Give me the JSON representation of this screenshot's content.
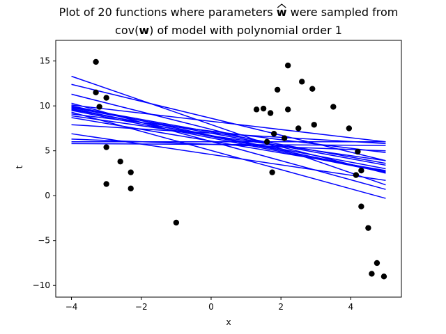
{
  "chart_data": {
    "type": "scatter",
    "title_line1": "Plot of 20 functions where parameters ŵ were sampled from",
    "title_line1_prefix": "Plot of 20 functions where parameters ",
    "title_line1_symbol": "w",
    "title_line1_suffix": " were sampled from",
    "title_line2_prefix": "cov(",
    "title_line2_symbol": "w",
    "title_line2_suffix": ") of model with polynomial order 1",
    "xlabel": "x",
    "ylabel": "t",
    "xlim": [
      -4.45,
      5.45
    ],
    "ylim": [
      -11.3,
      17.3
    ],
    "xticks": [
      -4,
      -2,
      0,
      2,
      4
    ],
    "yticks": [
      -10,
      -5,
      0,
      5,
      10,
      15
    ],
    "points_color": "#000000",
    "lines_color": "#0000ff",
    "points": [
      [
        -3.3,
        14.9
      ],
      [
        -3.3,
        11.5
      ],
      [
        -3.2,
        9.9
      ],
      [
        -3.0,
        10.9
      ],
      [
        -3.0,
        5.4
      ],
      [
        -3.0,
        1.3
      ],
      [
        -2.6,
        3.8
      ],
      [
        -2.3,
        2.6
      ],
      [
        -2.3,
        0.8
      ],
      [
        -1.0,
        -3.0
      ],
      [
        1.3,
        9.6
      ],
      [
        1.5,
        9.7
      ],
      [
        1.6,
        6.0
      ],
      [
        1.7,
        9.2
      ],
      [
        1.75,
        2.6
      ],
      [
        1.8,
        6.9
      ],
      [
        1.9,
        11.8
      ],
      [
        2.1,
        6.4
      ],
      [
        2.2,
        14.5
      ],
      [
        2.2,
        9.6
      ],
      [
        2.5,
        7.5
      ],
      [
        2.6,
        12.7
      ],
      [
        2.9,
        11.9
      ],
      [
        2.95,
        7.9
      ],
      [
        3.5,
        9.9
      ],
      [
        3.95,
        7.5
      ],
      [
        4.15,
        2.3
      ],
      [
        4.2,
        4.9
      ],
      [
        4.3,
        2.8
      ],
      [
        4.3,
        -1.2
      ],
      [
        4.5,
        -3.6
      ],
      [
        4.6,
        -8.7
      ],
      [
        4.75,
        -7.5
      ],
      [
        4.95,
        -9.0
      ]
    ],
    "line_x_range": [
      -4,
      5
    ],
    "lines": [
      [
        13.3,
        1.2
      ],
      [
        12.4,
        3.9
      ],
      [
        11.3,
        2.5
      ],
      [
        10.3,
        0.7
      ],
      [
        10.1,
        6.0
      ],
      [
        10.0,
        2.6
      ],
      [
        9.9,
        3.6
      ],
      [
        9.8,
        3.4
      ],
      [
        9.7,
        2.7
      ],
      [
        9.6,
        3.0
      ],
      [
        9.5,
        2.6
      ],
      [
        9.3,
        -0.3
      ],
      [
        9.1,
        4.8
      ],
      [
        8.9,
        3.9
      ],
      [
        8.7,
        2.8
      ],
      [
        7.9,
        5.8
      ],
      [
        6.9,
        1.7
      ],
      [
        6.3,
        5.0
      ],
      [
        6.0,
        6.0
      ],
      [
        5.8,
        5.6
      ]
    ]
  }
}
